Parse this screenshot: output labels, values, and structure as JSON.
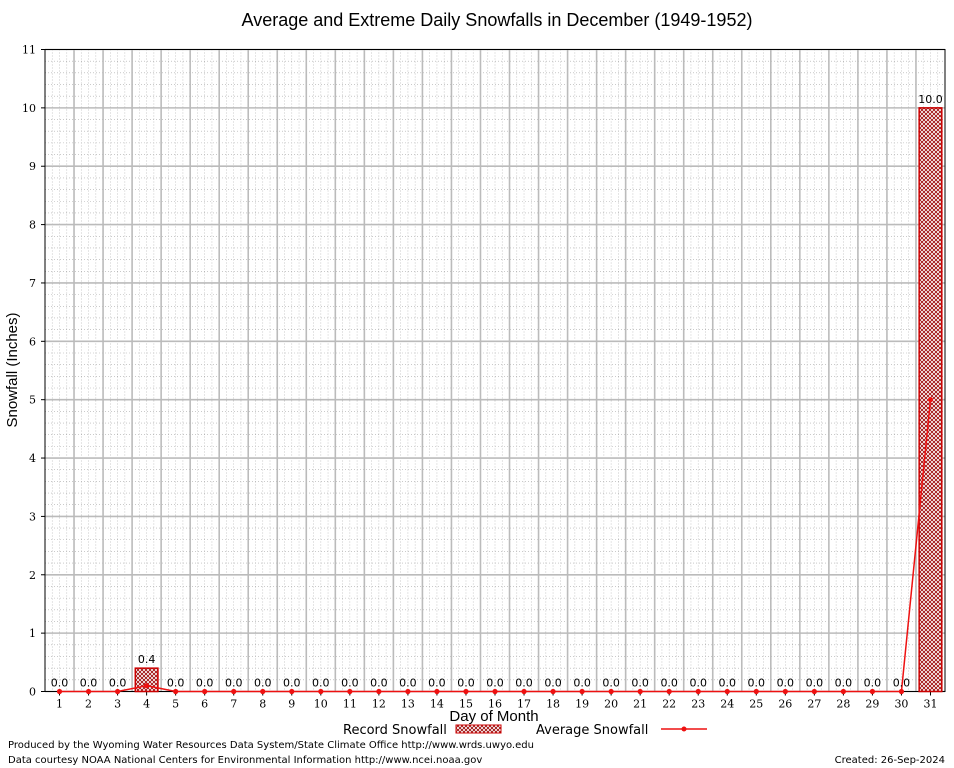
{
  "chart_data": {
    "type": "bar",
    "title": "Average and Extreme Daily Snowfalls in December (1949-1952)",
    "xlabel": "Day of Month",
    "ylabel": "Snowfall (Inches)",
    "ylim": [
      0,
      11
    ],
    "yticks": [
      0,
      1,
      2,
      3,
      4,
      5,
      6,
      7,
      8,
      9,
      10,
      11
    ],
    "categories": [
      "1",
      "2",
      "3",
      "4",
      "5",
      "6",
      "7",
      "8",
      "9",
      "10",
      "11",
      "12",
      "13",
      "14",
      "15",
      "16",
      "17",
      "18",
      "19",
      "20",
      "21",
      "22",
      "23",
      "24",
      "25",
      "26",
      "27",
      "28",
      "29",
      "30",
      "31"
    ],
    "grid": true,
    "legend_position": "bottom",
    "series": [
      {
        "name": "Record Snowfall",
        "type": "bar",
        "color": "#cc0000",
        "values": [
          0,
          0,
          0,
          0.4,
          0,
          0,
          0,
          0,
          0,
          0,
          0,
          0,
          0,
          0,
          0,
          0,
          0,
          0,
          0,
          0,
          0,
          0,
          0,
          0,
          0,
          0,
          0,
          0,
          0,
          0,
          10.0
        ],
        "labels": [
          "0.0",
          "0.0",
          "0.0",
          "0.4",
          "0.0",
          "0.0",
          "0.0",
          "0.0",
          "0.0",
          "0.0",
          "0.0",
          "0.0",
          "0.0",
          "0.0",
          "0.0",
          "0.0",
          "0.0",
          "0.0",
          "0.0",
          "0.0",
          "0.0",
          "0.0",
          "0.0",
          "0.0",
          "0.0",
          "0.0",
          "0.0",
          "0.0",
          "0.0",
          "0.0",
          "10.0"
        ]
      },
      {
        "name": "Average Snowfall",
        "type": "line",
        "color": "#ee1111",
        "values": [
          0,
          0,
          0,
          0.1,
          0,
          0,
          0,
          0,
          0,
          0,
          0,
          0,
          0,
          0,
          0,
          0,
          0,
          0,
          0,
          0,
          0,
          0,
          0,
          0,
          0,
          0,
          0,
          0,
          0,
          0,
          5.0
        ]
      }
    ]
  },
  "footer": {
    "producer": "Produced by the Wyoming Water Resources Data System/State Climate Office http://www.wrds.uwyo.edu",
    "source": "Data courtesy NOAA National Centers for Environmental Information http://www.ncei.noaa.gov",
    "created": "Created:  26-Sep-2024"
  }
}
